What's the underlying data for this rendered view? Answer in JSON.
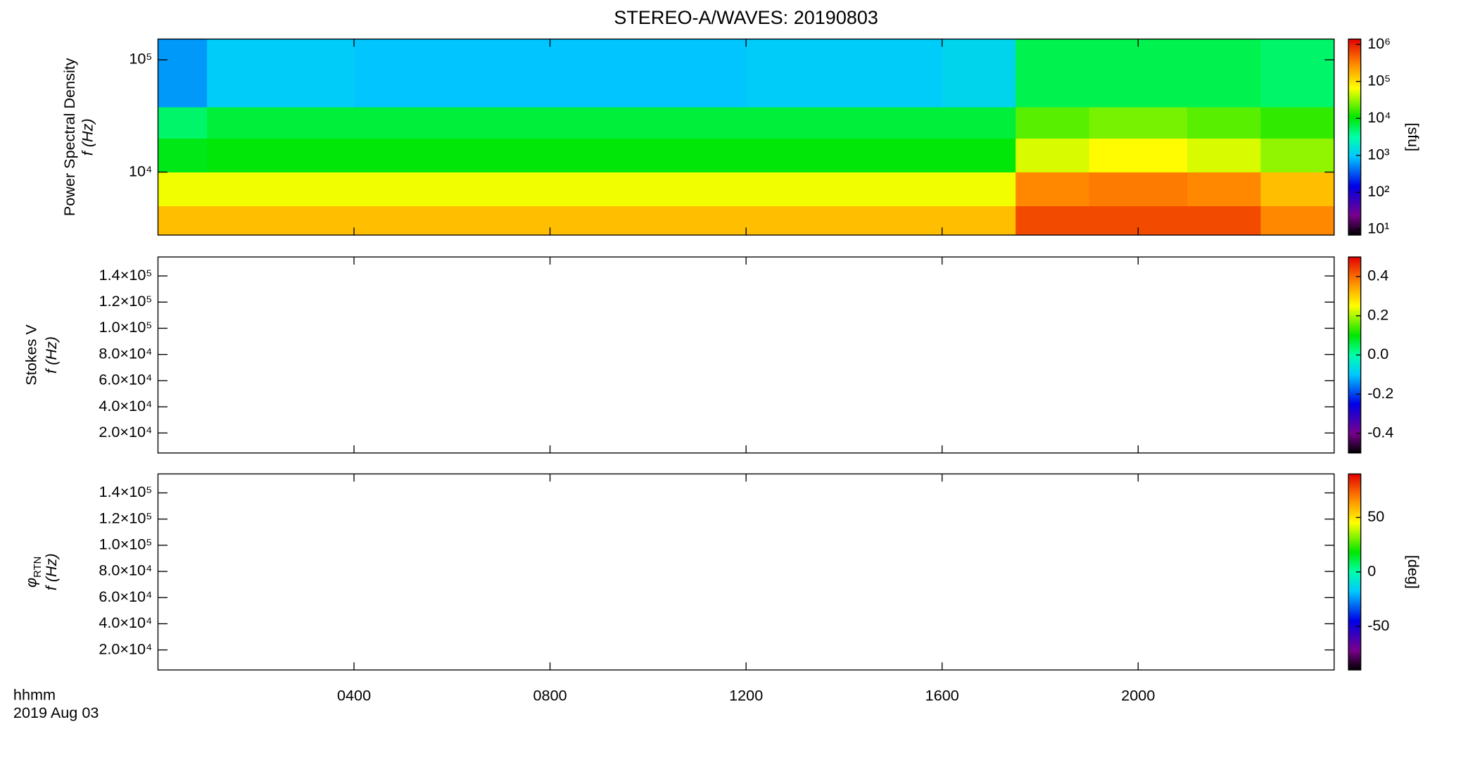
{
  "chart_data": [
    {
      "type": "heatmap",
      "title": "STEREO-A/WAVES: 20190803",
      "ylabel": "Power Spectral Density",
      "ylabel2": "f (Hz)",
      "ylog": true,
      "ylim": [
        2750,
        153000
      ],
      "yticks": [
        {
          "value": 10000,
          "label": "10⁴"
        },
        {
          "value": 100000,
          "label": "10⁵"
        }
      ],
      "xlim": [
        0,
        24
      ],
      "time_bins": [
        0,
        1,
        4,
        8,
        12,
        16,
        17.5,
        19,
        21,
        22.5,
        24
      ],
      "freq_bins": [
        2750,
        5000,
        10000,
        20000,
        38000,
        153000
      ],
      "values": [
        [
          150000,
          150000,
          150000,
          150000,
          150000,
          150000,
          600000,
          600000,
          600000,
          300000
        ],
        [
          60000,
          60000,
          60000,
          60000,
          60000,
          60000,
          300000,
          350000,
          300000,
          150000
        ],
        [
          9000,
          10000,
          10000,
          10000,
          10000,
          10000,
          50000,
          70000,
          50000,
          30000
        ],
        [
          5000,
          7000,
          7000,
          7000,
          7000,
          7000,
          20000,
          25000,
          20000,
          15000
        ],
        [
          600,
          1000,
          900,
          900,
          1000,
          1200,
          6000,
          6000,
          6000,
          5000
        ]
      ],
      "colormap": "rainbow",
      "clog": true,
      "clim": [
        7,
        1400000
      ],
      "cticks": [
        {
          "value": 10,
          "label": "10¹"
        },
        {
          "value": 100,
          "label": "10²"
        },
        {
          "value": 1000,
          "label": "10³"
        },
        {
          "value": 10000,
          "label": "10⁴"
        },
        {
          "value": 100000,
          "label": "10⁵"
        },
        {
          "value": 1000000,
          "label": "10⁶"
        }
      ],
      "clabel": "[sfu]"
    },
    {
      "type": "heatmap",
      "ylabel": "Stokes V",
      "ylabel2": "f (Hz)",
      "ylog": false,
      "ylim": [
        4700,
        154500
      ],
      "yticks": [
        {
          "value": 20000,
          "label": "2.0×10⁴"
        },
        {
          "value": 40000,
          "label": "4.0×10⁴"
        },
        {
          "value": 60000,
          "label": "6.0×10⁴"
        },
        {
          "value": 80000,
          "label": "8.0×10⁴"
        },
        {
          "value": 100000,
          "label": "1.0×10⁵"
        },
        {
          "value": 120000,
          "label": "1.2×10⁵"
        },
        {
          "value": 140000,
          "label": "1.4×10⁵"
        }
      ],
      "xlim": [
        0,
        24
      ],
      "colormap": "rainbow",
      "clog": false,
      "clim": [
        -0.5,
        0.5
      ],
      "cticks": [
        -0.4,
        -0.2,
        {
          "value": 0,
          "label": "0.0"
        },
        0.2,
        0.4
      ]
    },
    {
      "type": "heatmap",
      "ysymbol": "φ",
      "ysubscript": "RTN",
      "ylabel2": "f (Hz)",
      "ylog": false,
      "ylim": [
        4700,
        154500
      ],
      "yticks": [
        {
          "value": 20000,
          "label": "2.0×10⁴"
        },
        {
          "value": 40000,
          "label": "4.0×10⁴"
        },
        {
          "value": 60000,
          "label": "6.0×10⁴"
        },
        {
          "value": 80000,
          "label": "8.0×10⁴"
        },
        {
          "value": 100000,
          "label": "1.0×10⁵"
        },
        {
          "value": 120000,
          "label": "1.2×10⁵"
        },
        {
          "value": 140000,
          "label": "1.4×10⁵"
        }
      ],
      "xlim": [
        0,
        24
      ],
      "xticks": [
        {
          "value": 4,
          "label": "0400"
        },
        {
          "value": 8,
          "label": "0800"
        },
        {
          "value": 12,
          "label": "1200"
        },
        {
          "value": 16,
          "label": "1600"
        },
        {
          "value": 20,
          "label": "2000"
        }
      ],
      "xlabel": "hhmm",
      "date_label": "2019 Aug 03",
      "colormap": "rainbow",
      "clog": false,
      "clim": [
        -90,
        90
      ],
      "cticks": [
        -50,
        0,
        50
      ],
      "clabel": "[deg]"
    }
  ]
}
